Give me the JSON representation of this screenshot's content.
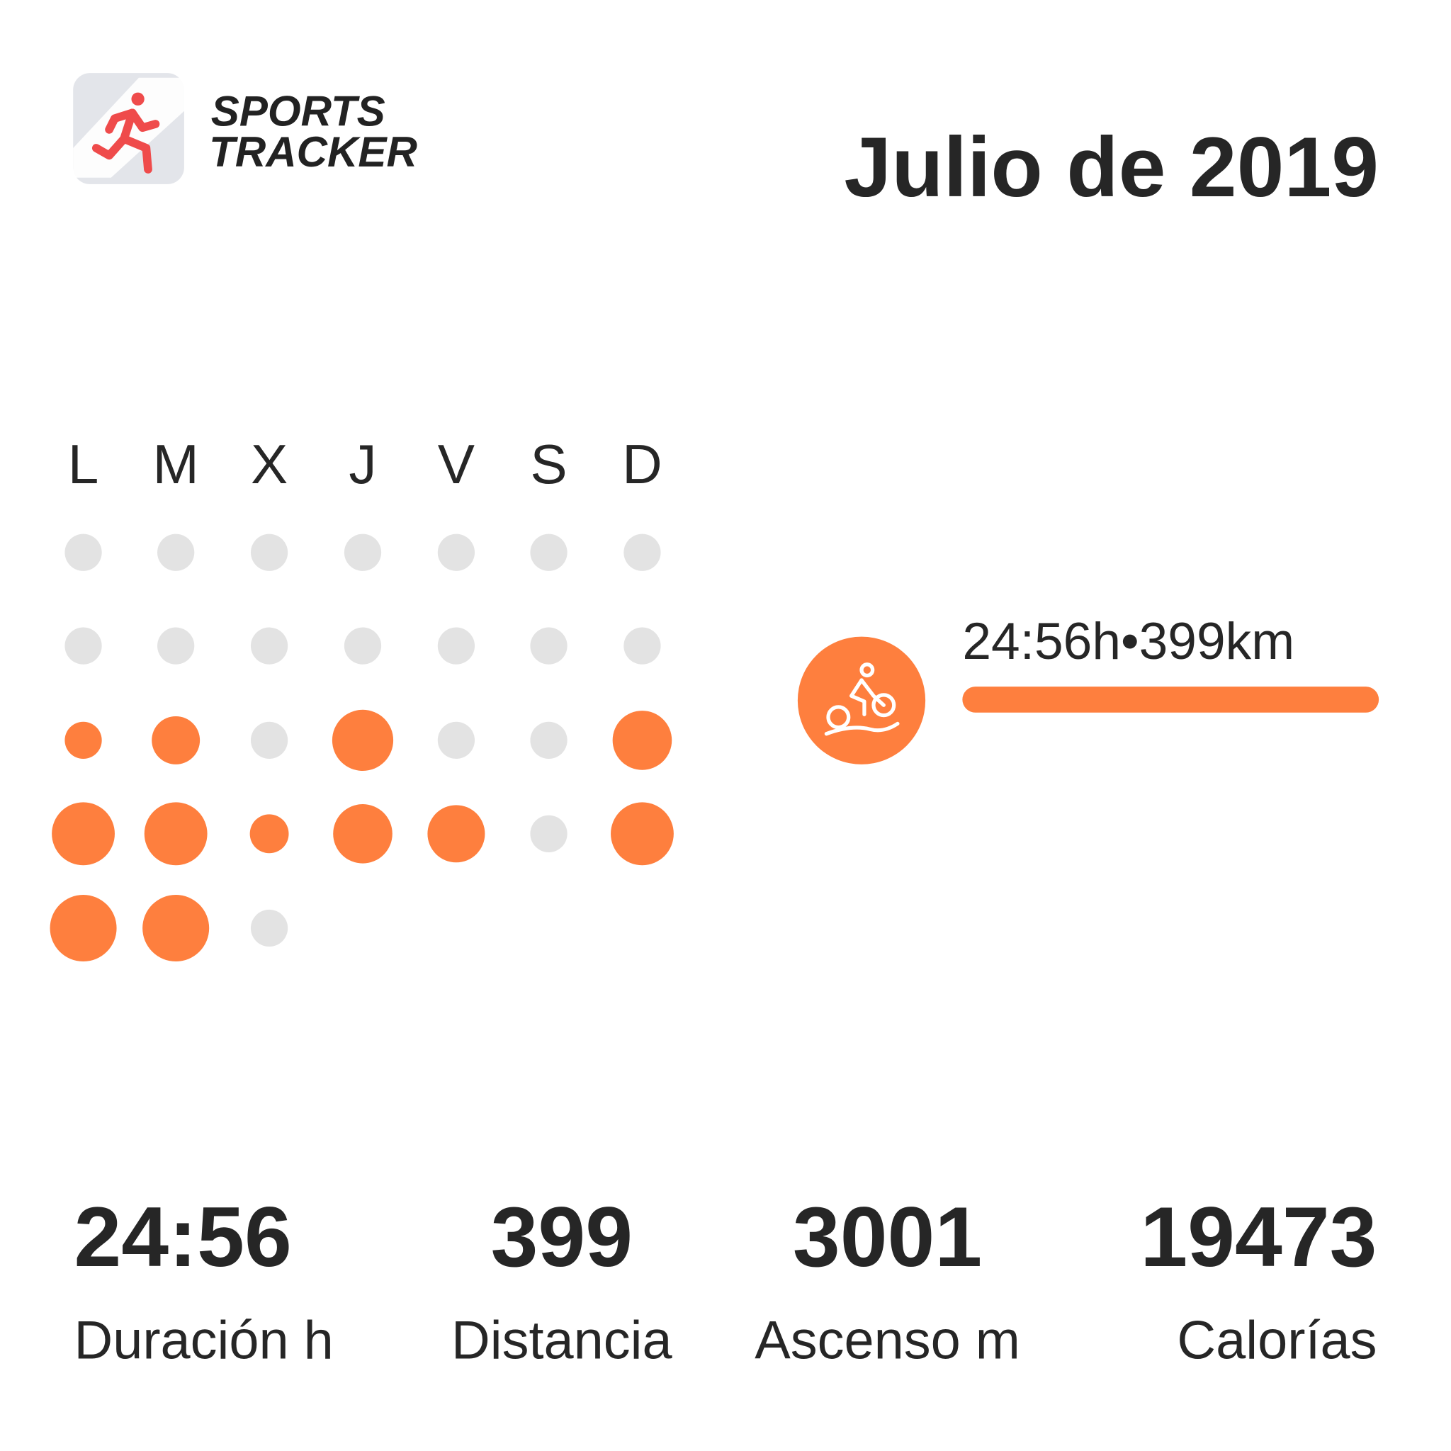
{
  "header": {
    "logo_line1": "SPORTS",
    "logo_line2": "TRACKER",
    "title": "Julio de 2019"
  },
  "calendar": {
    "weekdays": [
      "L",
      "M",
      "X",
      "J",
      "V",
      "S",
      "D"
    ]
  },
  "activity": {
    "summary": "24:56h•399km"
  },
  "stats": [
    {
      "value": "24:56",
      "label": "Duración h"
    },
    {
      "value": 399,
      "label": "Distancia"
    },
    {
      "value": 3001,
      "label": "Ascenso m"
    },
    {
      "value": 19473,
      "label": "Calorías"
    }
  ]
}
